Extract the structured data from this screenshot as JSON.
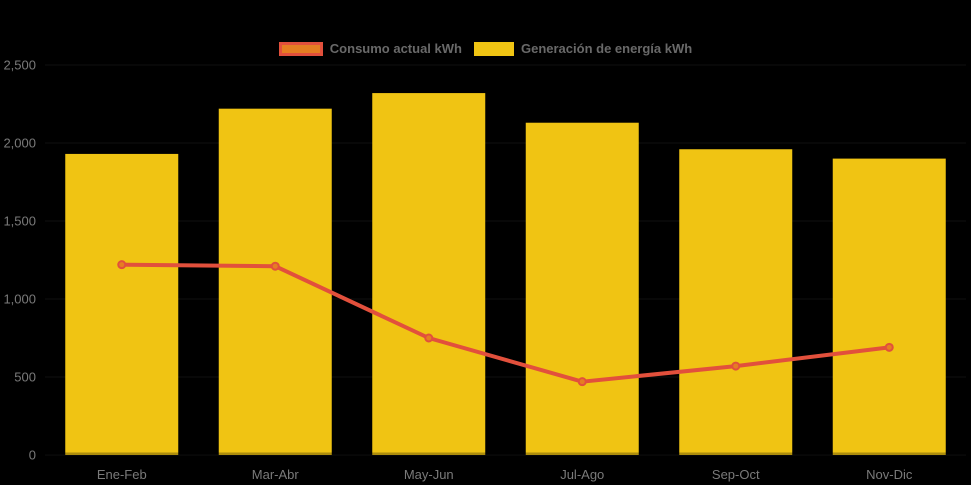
{
  "chart_data": {
    "type": "combo-bar-line",
    "categories": [
      "Ene-Feb",
      "Mar-Abr",
      "May-Jun",
      "Jul-Ago",
      "Sep-Oct",
      "Nov-Dic"
    ],
    "series": [
      {
        "name": "Consumo actual kWh",
        "type": "line",
        "values": [
          1220,
          1210,
          750,
          470,
          570,
          690
        ],
        "line_color": "#e2503c",
        "marker_fill": "#e67e22"
      },
      {
        "name": "Generación de energía kWh",
        "type": "bar",
        "values": [
          1930,
          2220,
          2320,
          2130,
          1960,
          1900
        ],
        "bar_color": "#f0c413"
      }
    ],
    "yticks": [
      {
        "value": 0,
        "label": "0"
      },
      {
        "value": 500,
        "label": "500"
      },
      {
        "value": 1000,
        "label": "1,000"
      },
      {
        "value": 1500,
        "label": "1,500"
      },
      {
        "value": 2000,
        "label": "2,000"
      },
      {
        "value": 2500,
        "label": "2,500"
      }
    ],
    "ylim": [
      0,
      2500
    ],
    "xlabel": "",
    "ylabel": "",
    "title": "",
    "grid": "off",
    "legend_position": "top",
    "background_color": "#000000",
    "axis_label_color": "#7a7a7a",
    "legend_text_color": "#696969"
  }
}
